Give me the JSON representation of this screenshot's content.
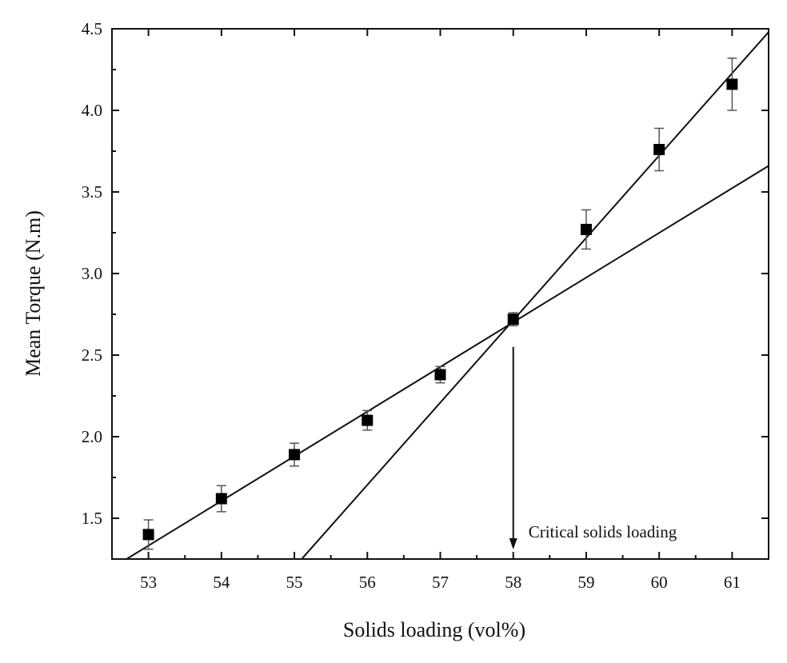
{
  "chart_data": {
    "type": "scatter",
    "xlabel": "Solids loading (vol%)",
    "ylabel": "Mean Torque (N.m)",
    "xlim": [
      52.5,
      61.5
    ],
    "ylim": [
      1.25,
      4.5
    ],
    "xticks": [
      53,
      54,
      55,
      56,
      57,
      58,
      59,
      60,
      61
    ],
    "yticks": [
      1.5,
      2.0,
      2.5,
      3.0,
      3.5,
      4.0,
      4.5
    ],
    "xtick_labels": [
      "53",
      "54",
      "55",
      "56",
      "57",
      "58",
      "59",
      "60",
      "61"
    ],
    "ytick_labels": [
      "1.5",
      "2.0",
      "2.5",
      "3.0",
      "3.5",
      "4.0",
      "4.5"
    ],
    "grid": false,
    "legend": "none",
    "series": [
      {
        "marker": "square",
        "color": "#000000",
        "x": [
          53,
          54,
          55,
          56,
          57,
          58,
          59,
          60,
          61
        ],
        "y": [
          1.4,
          1.62,
          1.89,
          2.1,
          2.38,
          2.72,
          3.27,
          3.76,
          4.16
        ],
        "error": [
          0.09,
          0.08,
          0.07,
          0.06,
          0.05,
          0.04,
          0.12,
          0.13,
          0.16
        ]
      }
    ],
    "fit_lines": [
      {
        "x": [
          52.7,
          61.5
        ],
        "y": [
          1.25,
          3.66
        ]
      },
      {
        "x": [
          55.1,
          61.5
        ],
        "y": [
          1.25,
          4.48
        ]
      }
    ],
    "annotations": [
      {
        "text": "Critical solids loading",
        "x": 58.0,
        "y_from": 2.55,
        "y_to": 1.25
      }
    ]
  }
}
